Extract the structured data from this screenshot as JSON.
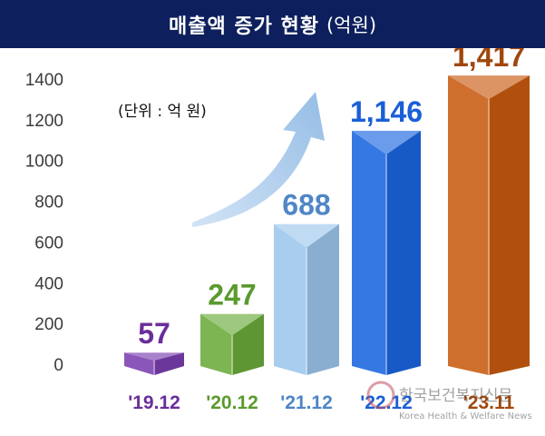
{
  "title": {
    "main": "매출액 증가 현황",
    "unit": "(억원)"
  },
  "unit_note": "(단위 : 억 원)",
  "watermark": {
    "korean": "한국보건복지신문",
    "english": "Korea Health & Welfare News"
  },
  "chart_data": {
    "type": "bar",
    "title": "매출액 증가 현황 (억원)",
    "categories": [
      "'19.12",
      "'20.12",
      "'21.12",
      "'22.12",
      "'23.11"
    ],
    "values": [
      57,
      247,
      688,
      1146,
      1417
    ],
    "value_labels": [
      "57",
      "247",
      "688",
      "1,146",
      "1,417"
    ],
    "ylim": [
      0,
      1400
    ],
    "yticks": [
      "0",
      "200",
      "400",
      "600",
      "800",
      "1000",
      "1200",
      "1400"
    ],
    "ytick_values": [
      0,
      200,
      400,
      600,
      800,
      1000,
      1200,
      1400
    ],
    "grid": false,
    "legend": "none",
    "colors": [
      "#7b3fb0",
      "#6aab3a",
      "#9cc6ec",
      "#1a66e0",
      "#c95b10"
    ],
    "label_colors": [
      "#6b2e9a",
      "#5a9a2e",
      "#4f86c6",
      "#1a5fd6",
      "#a0480d"
    ],
    "annotation": "growth-arrow"
  }
}
